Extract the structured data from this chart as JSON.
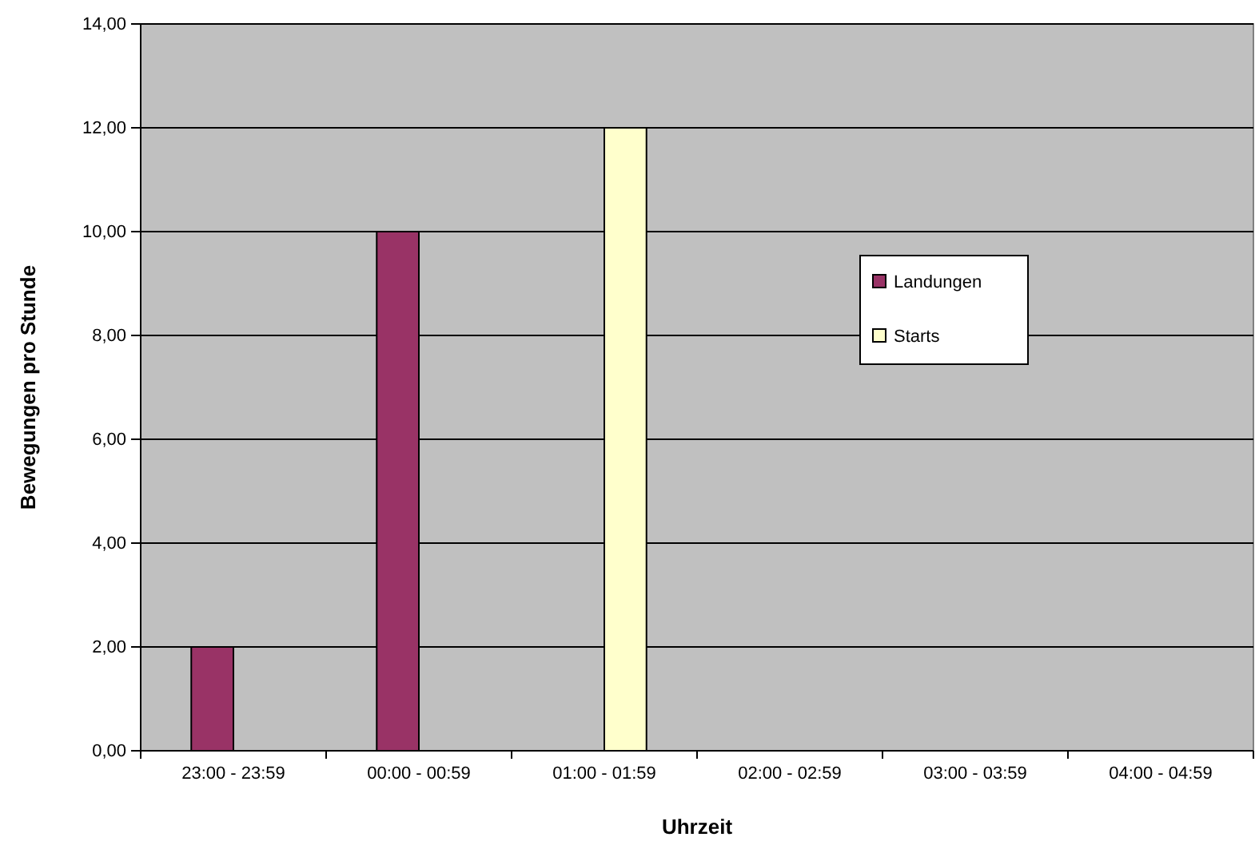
{
  "chart_data": {
    "type": "bar",
    "xlabel": "Uhrzeit",
    "ylabel": "Bewegungen pro Stunde",
    "categories": [
      "23:00 - 23:59",
      "00:00 - 00:59",
      "01:00 - 01:59",
      "02:00 - 02:59",
      "03:00 - 03:59",
      "04:00 - 04:59"
    ],
    "series": [
      {
        "name": "Landungen",
        "color": "#993366",
        "values": [
          2,
          10,
          0,
          0,
          0,
          0
        ]
      },
      {
        "name": "Starts",
        "color": "#ffffcc",
        "values": [
          0,
          0,
          12,
          0,
          0,
          0
        ]
      }
    ],
    "ylim": [
      0,
      14
    ],
    "yticks": [
      {
        "value": 0,
        "label": "0,00"
      },
      {
        "value": 2,
        "label": "2,00"
      },
      {
        "value": 4,
        "label": "4,00"
      },
      {
        "value": 6,
        "label": "6,00"
      },
      {
        "value": 8,
        "label": "8,00"
      },
      {
        "value": 10,
        "label": "10,00"
      },
      {
        "value": 12,
        "label": "12,00"
      },
      {
        "value": 14,
        "label": "14,00"
      }
    ],
    "grid": "y",
    "legend": "right"
  }
}
